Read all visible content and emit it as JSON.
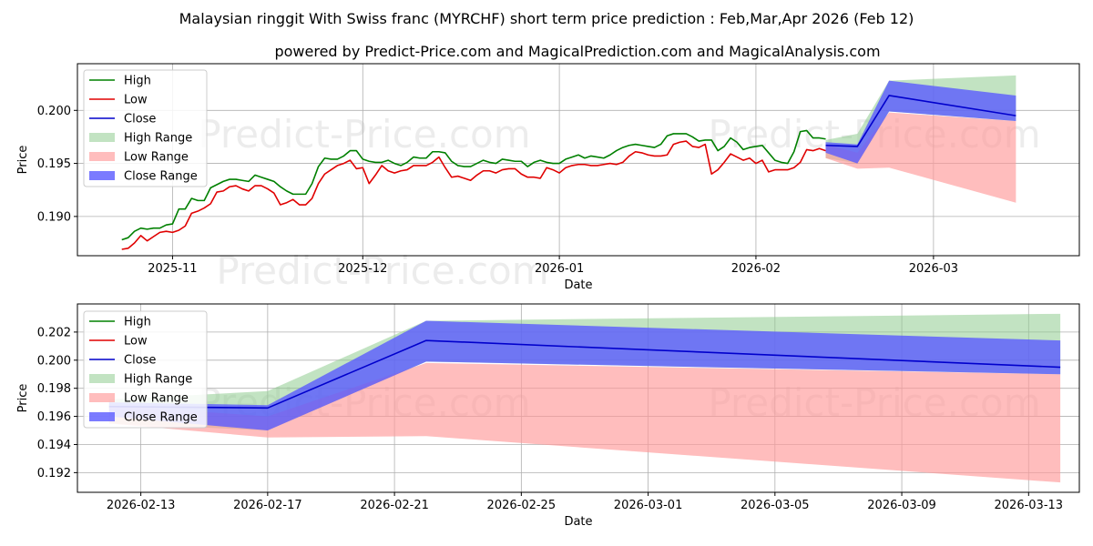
{
  "title": "Malaysian ringgit With Swiss franc (MYRCHF) short term price prediction : Feb,Mar,Apr 2026 (Feb 12)",
  "subtitle": "powered by Predict-Price.com and MagicalPrediction.com and MagicalAnalysis.com",
  "watermark": "Predict-Price.com",
  "colors": {
    "high": "#008000",
    "low": "#e00000",
    "close": "#0000cc",
    "high_range": "#8fcc8f",
    "low_range": "#ff9a9a",
    "close_range": "#5a5aff"
  },
  "legend": [
    "High",
    "Low",
    "Close",
    "High Range",
    "Low Range",
    "Close Range"
  ],
  "chart_data": [
    {
      "type": "line",
      "panel": "top",
      "xlabel": "Date",
      "ylabel": "Price",
      "xlim": [
        "2025-10-17",
        "2026-03-24"
      ],
      "ylim": [
        0.1863,
        0.2044
      ],
      "xticks": [
        "2025-11",
        "2025-12",
        "2026-01",
        "2026-02",
        "2026-03"
      ],
      "yticks": [
        "0.190",
        "0.195",
        "0.200"
      ],
      "grid": true,
      "legend_position": "top-left",
      "history": {
        "dates": [
          "2025-10-24",
          "2025-10-25",
          "2025-10-26",
          "2025-10-27",
          "2025-10-28",
          "2025-10-29",
          "2025-10-30",
          "2025-10-31",
          "2025-11-01",
          "2025-11-02",
          "2025-11-03",
          "2025-11-04",
          "2025-11-05",
          "2025-11-06",
          "2025-11-07",
          "2025-11-08",
          "2025-11-09",
          "2025-11-10",
          "2025-11-11",
          "2025-11-12",
          "2025-11-13",
          "2025-11-14",
          "2025-11-15",
          "2025-11-16",
          "2025-11-17",
          "2025-11-18",
          "2025-11-19",
          "2025-11-20",
          "2025-11-21",
          "2025-11-22",
          "2025-11-23",
          "2025-11-24",
          "2025-11-25",
          "2025-11-26",
          "2025-11-27",
          "2025-11-28",
          "2025-11-29",
          "2025-11-30",
          "2025-12-01",
          "2025-12-02",
          "2025-12-03",
          "2025-12-04",
          "2025-12-05",
          "2025-12-06",
          "2025-12-07",
          "2025-12-08",
          "2025-12-09",
          "2025-12-10",
          "2025-12-11",
          "2025-12-12",
          "2025-12-13",
          "2025-12-14",
          "2025-12-15",
          "2025-12-16",
          "2025-12-17",
          "2025-12-18",
          "2025-12-19",
          "2025-12-20",
          "2025-12-21",
          "2025-12-22",
          "2025-12-23",
          "2025-12-24",
          "2025-12-25",
          "2025-12-26",
          "2025-12-27",
          "2025-12-28",
          "2025-12-29",
          "2025-12-30",
          "2025-12-31",
          "2026-01-01",
          "2026-01-02",
          "2026-01-03",
          "2026-01-04",
          "2026-01-05",
          "2026-01-06",
          "2026-01-07",
          "2026-01-08",
          "2026-01-09",
          "2026-01-10",
          "2026-01-11",
          "2026-01-12",
          "2026-01-13",
          "2026-01-14",
          "2026-01-15",
          "2026-01-16",
          "2026-01-17",
          "2026-01-18",
          "2026-01-19",
          "2026-01-20",
          "2026-01-21",
          "2026-01-22",
          "2026-01-23",
          "2026-01-24",
          "2026-01-25",
          "2026-01-26",
          "2026-01-27",
          "2026-01-28",
          "2026-01-29",
          "2026-01-30",
          "2026-01-31",
          "2026-02-01",
          "2026-02-02",
          "2026-02-03",
          "2026-02-04",
          "2026-02-05",
          "2026-02-06",
          "2026-02-07",
          "2026-02-08",
          "2026-02-09",
          "2026-02-10",
          "2026-02-11",
          "2026-02-12"
        ],
        "high": [
          0.1878,
          0.188,
          0.1886,
          0.1889,
          0.1888,
          0.1889,
          0.1889,
          0.1892,
          0.1893,
          0.1907,
          0.1907,
          0.1917,
          0.1915,
          0.1915,
          0.1927,
          0.193,
          0.1933,
          0.1935,
          0.1935,
          0.1934,
          0.1933,
          0.1939,
          0.1937,
          0.1935,
          0.1933,
          0.1928,
          0.1924,
          0.1921,
          0.1921,
          0.1921,
          0.1931,
          0.1947,
          0.1955,
          0.1954,
          0.1954,
          0.1957,
          0.1962,
          0.1962,
          0.1954,
          0.1952,
          0.1951,
          0.1951,
          0.1953,
          0.195,
          0.1948,
          0.1951,
          0.1956,
          0.1955,
          0.1955,
          0.1961,
          0.1961,
          0.196,
          0.1952,
          0.1948,
          0.1947,
          0.1947,
          0.195,
          0.1953,
          0.1951,
          0.195,
          0.1954,
          0.1953,
          0.1952,
          0.1952,
          0.1947,
          0.1951,
          0.1953,
          0.1951,
          0.195,
          0.195,
          0.1954,
          0.1956,
          0.1958,
          0.1955,
          0.1957,
          0.1956,
          0.1955,
          0.1958,
          0.1962,
          0.1965,
          0.1967,
          0.1968,
          0.1967,
          0.1966,
          0.1965,
          0.1968,
          0.1976,
          0.1978,
          0.1978,
          0.1978,
          0.1975,
          0.1971,
          0.1972,
          0.1972,
          0.1962,
          0.1966,
          0.1974,
          0.197,
          0.1963,
          0.1965,
          0.1966,
          0.1967,
          0.196,
          0.1953,
          0.1951,
          0.195,
          0.1961,
          0.198,
          0.1981,
          0.1974,
          0.1974,
          0.1973
        ],
        "low": [
          0.1869,
          0.187,
          0.1875,
          0.1882,
          0.1877,
          0.1881,
          0.1885,
          0.1886,
          0.1885,
          0.1887,
          0.1891,
          0.1903,
          0.1905,
          0.1908,
          0.1912,
          0.1923,
          0.1924,
          0.1928,
          0.1929,
          0.1926,
          0.1924,
          0.1929,
          0.1929,
          0.1926,
          0.1922,
          0.1911,
          0.1913,
          0.1916,
          0.1911,
          0.1911,
          0.1917,
          0.1931,
          0.194,
          0.1944,
          0.1948,
          0.195,
          0.1953,
          0.1945,
          0.1946,
          0.1931,
          0.1939,
          0.1948,
          0.1943,
          0.1941,
          0.1943,
          0.1944,
          0.1948,
          0.1948,
          0.1948,
          0.1951,
          0.1956,
          0.1946,
          0.1937,
          0.1938,
          0.1936,
          0.1934,
          0.1939,
          0.1943,
          0.1943,
          0.1941,
          0.1944,
          0.1945,
          0.1945,
          0.194,
          0.1937,
          0.1937,
          0.1936,
          0.1946,
          0.1944,
          0.1941,
          0.1946,
          0.1948,
          0.1949,
          0.1949,
          0.1948,
          0.1948,
          0.1949,
          0.195,
          0.1949,
          0.1951,
          0.1957,
          0.1961,
          0.196,
          0.1958,
          0.1957,
          0.1957,
          0.1958,
          0.1968,
          0.197,
          0.1971,
          0.1966,
          0.1965,
          0.1968,
          0.194,
          0.1944,
          0.1951,
          0.1959,
          0.1956,
          0.1953,
          0.1955,
          0.195,
          0.1953,
          0.1942,
          0.1944,
          0.1944,
          0.1944,
          0.1946,
          0.1951,
          0.1963,
          0.1962,
          0.1964,
          0.1962
        ]
      },
      "forecast_lines": {
        "dates": [
          "2026-02-12",
          "2026-02-17",
          "2026-02-22",
          "2026-03-14"
        ],
        "high": [
          0.1973,
          0.1972,
          0.2014,
          0.1995
        ],
        "low": [
          0.1962,
          0.1967,
          0.2014,
          0.1995
        ],
        "close": [
          0.1967,
          0.1966,
          0.2014,
          0.1995
        ]
      }
    },
    {
      "type": "area",
      "panel": "bottom",
      "xlabel": "Date",
      "ylabel": "Price",
      "xlim": [
        "2026-02-11",
        "2026-03-14.6"
      ],
      "ylim": [
        0.1906,
        0.204
      ],
      "xticks": [
        "2026-02-13",
        "2026-02-17",
        "2026-02-21",
        "2026-02-25",
        "2026-03-01",
        "2026-03-05",
        "2026-03-09",
        "2026-03-13"
      ],
      "yticks": [
        "0.192",
        "0.194",
        "0.196",
        "0.198",
        "0.200",
        "0.202"
      ],
      "grid": true,
      "legend_position": "top-left",
      "dates": [
        "2026-02-12",
        "2026-02-17",
        "2026-02-22",
        "2026-03-14"
      ],
      "high_range": {
        "upper": [
          0.1972,
          0.1978,
          0.2028,
          0.2033
        ],
        "lower": [
          0.1955,
          0.195,
          0.1999,
          0.199
        ]
      },
      "low_range": {
        "upper": [
          0.1968,
          0.196,
          0.1998,
          0.199
        ],
        "lower": [
          0.1955,
          0.1945,
          0.1946,
          0.1913
        ]
      },
      "close_range": {
        "upper": [
          0.197,
          0.1968,
          0.2028,
          0.2014
        ],
        "lower": [
          0.196,
          0.195,
          0.1999,
          0.199
        ]
      },
      "close": [
        0.1967,
        0.1966,
        0.2014,
        0.1995
      ]
    }
  ]
}
